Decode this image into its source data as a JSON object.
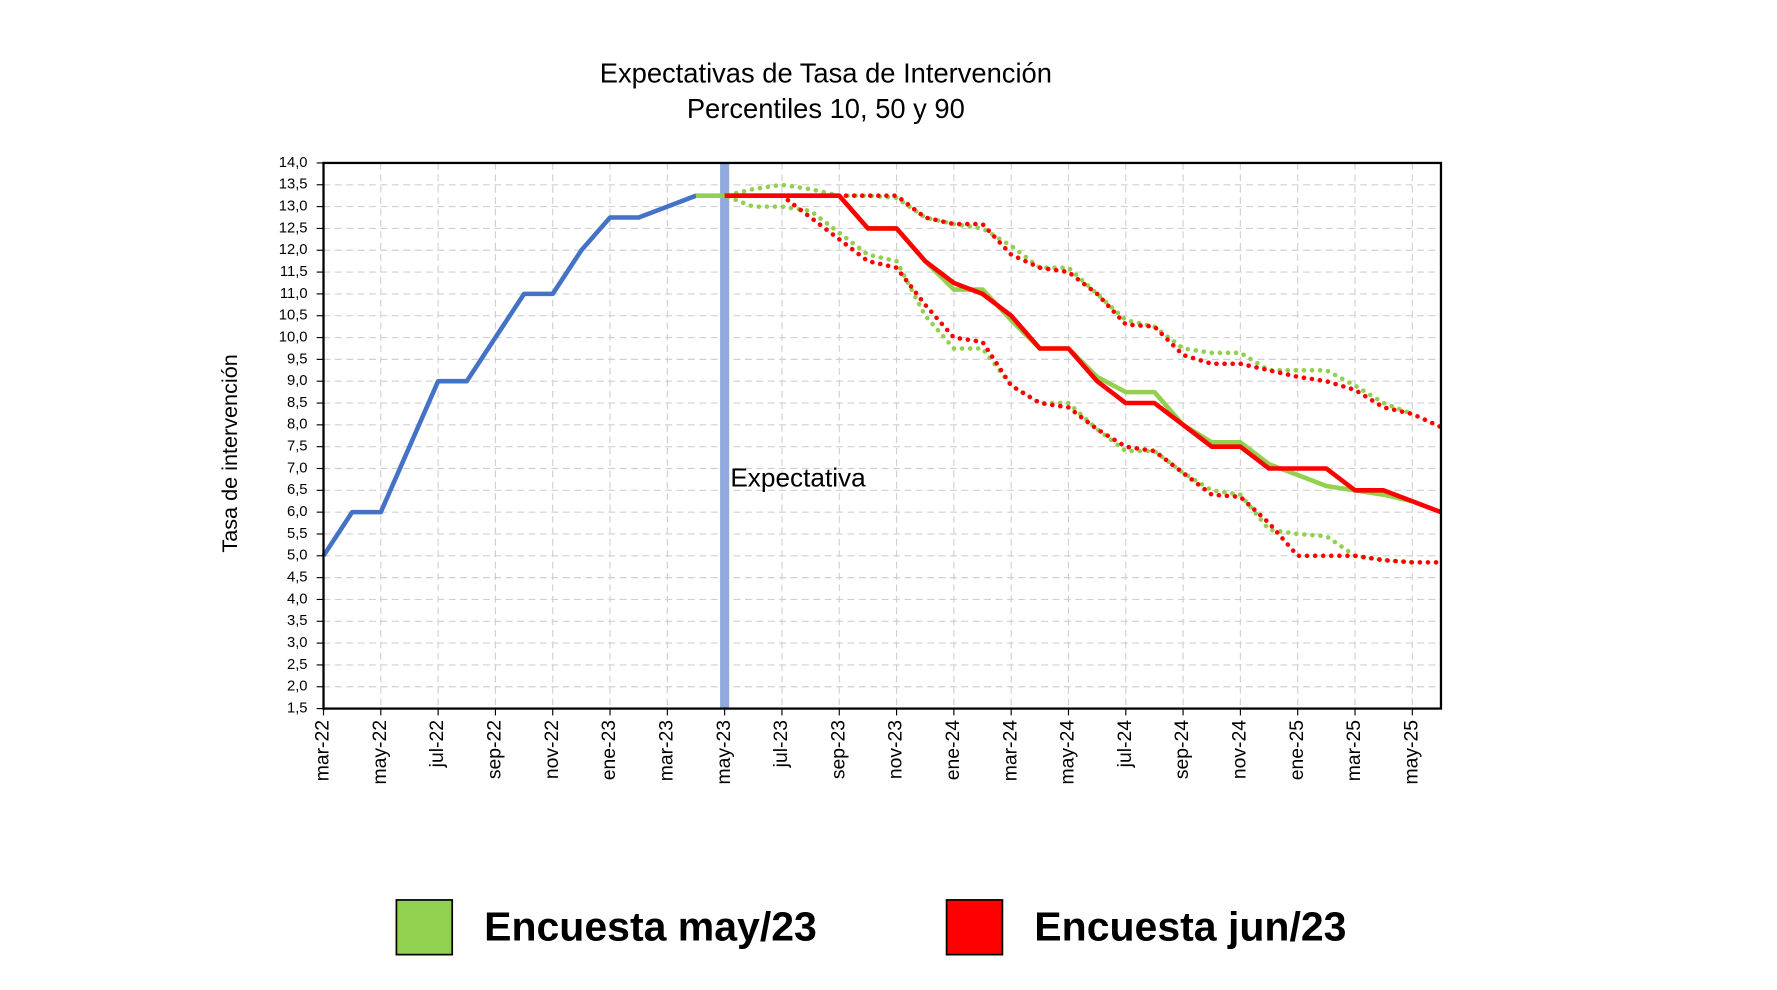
{
  "chart_data": {
    "type": "line",
    "title": "Expectativas de Tasa de Intervención",
    "subtitle": "Percentiles 10, 50 y 90",
    "y_label": "Tasa de intervención",
    "categories": [
      "mar-22",
      null,
      "may-22",
      null,
      "jul-22",
      null,
      "sep-22",
      null,
      "nov-22",
      null,
      "ene-23",
      null,
      "mar-23",
      null,
      "may-23",
      null,
      "jul-23",
      null,
      "sep-23",
      null,
      "nov-23",
      null,
      "ene-24",
      null,
      "mar-24",
      null,
      "may-24",
      null,
      "jul-24",
      null,
      "sep-24",
      null,
      "nov-24",
      null,
      "ene-25",
      null,
      "mar-25",
      null,
      "may-25",
      null
    ],
    "ylim": [
      1.5,
      14.0
    ],
    "yticks": [
      {
        "value": 1.5,
        "label": "1,5"
      },
      {
        "value": 2.0,
        "label": "2,0"
      },
      {
        "value": 2.5,
        "label": "2,5"
      },
      {
        "value": 3.0,
        "label": "3,0"
      },
      {
        "value": 3.5,
        "label": "3,5"
      },
      {
        "value": 4.0,
        "label": "4,0"
      },
      {
        "value": 4.5,
        "label": "4,5"
      },
      {
        "value": 5.0,
        "label": "5,0"
      },
      {
        "value": 5.5,
        "label": "5,5"
      },
      {
        "value": 6.0,
        "label": "6,0"
      },
      {
        "value": 6.5,
        "label": "6,5"
      },
      {
        "value": 7.0,
        "label": "7,0"
      },
      {
        "value": 7.5,
        "label": "7,5"
      },
      {
        "value": 8.0,
        "label": "8,0"
      },
      {
        "value": 8.5,
        "label": "8,5"
      },
      {
        "value": 9.0,
        "label": "9,0"
      },
      {
        "value": 9.5,
        "label": "9,5"
      },
      {
        "value": 10.0,
        "label": "10,0"
      },
      {
        "value": 10.5,
        "label": "10,5"
      },
      {
        "value": 11.0,
        "label": "11,0"
      },
      {
        "value": 11.5,
        "label": "11,5"
      },
      {
        "value": 12.0,
        "label": "12,0"
      },
      {
        "value": 12.5,
        "label": "12,5"
      },
      {
        "value": 13.0,
        "label": "13,0"
      },
      {
        "value": 13.5,
        "label": "13,5"
      },
      {
        "value": 14.0,
        "label": "14,0"
      }
    ],
    "grid": true,
    "vline": {
      "label": "Expectativa",
      "category": "may-23",
      "color": "#8faadc"
    },
    "series": [
      {
        "color": "#4472c4",
        "style": "solid",
        "values": [
          5.0,
          6.0,
          6.0,
          7.5,
          9.0,
          9.0,
          10.0,
          11.0,
          11.0,
          12.0,
          12.75,
          12.75,
          13.0,
          13.25,
          null,
          null,
          null,
          null,
          null,
          null,
          null,
          null,
          null,
          null,
          null,
          null,
          null,
          null,
          null,
          null,
          null,
          null,
          null,
          null,
          null,
          null,
          null,
          null,
          null,
          null
        ]
      },
      {
        "color": "#92d050",
        "style": "dotted",
        "values": [
          null,
          null,
          null,
          null,
          null,
          null,
          null,
          null,
          null,
          null,
          null,
          null,
          null,
          13.25,
          13.25,
          13.4,
          13.5,
          13.4,
          13.25,
          13.25,
          13.2,
          12.75,
          12.6,
          12.5,
          12.1,
          11.6,
          11.6,
          11.0,
          10.4,
          10.25,
          9.75,
          9.65,
          9.65,
          9.25,
          9.25,
          9.25,
          8.9,
          8.5,
          8.25,
          null
        ]
      },
      {
        "color": "#92d050",
        "style": "dotted",
        "values": [
          null,
          null,
          null,
          null,
          null,
          null,
          null,
          null,
          null,
          null,
          null,
          null,
          null,
          13.25,
          13.25,
          13.0,
          13.0,
          12.9,
          12.4,
          11.9,
          11.75,
          10.5,
          9.75,
          9.75,
          8.9,
          8.5,
          8.5,
          7.9,
          7.4,
          7.4,
          6.9,
          6.5,
          6.4,
          5.6,
          5.5,
          5.45,
          5.0,
          4.9,
          4.85,
          null
        ]
      },
      {
        "color": "#ff0000",
        "style": "dotted",
        "values": [
          null,
          null,
          null,
          null,
          null,
          null,
          null,
          null,
          null,
          null,
          null,
          null,
          null,
          null,
          13.25,
          13.25,
          13.25,
          13.25,
          13.25,
          13.25,
          13.25,
          12.75,
          12.6,
          12.6,
          11.9,
          11.6,
          11.5,
          11.0,
          10.3,
          10.25,
          9.6,
          9.4,
          9.4,
          9.25,
          9.1,
          9.0,
          8.8,
          8.4,
          8.25,
          7.95
        ]
      },
      {
        "color": "#ff0000",
        "style": "dotted",
        "values": [
          null,
          null,
          null,
          null,
          null,
          null,
          null,
          null,
          null,
          null,
          null,
          null,
          null,
          null,
          13.25,
          13.25,
          13.25,
          12.75,
          12.25,
          11.75,
          11.6,
          10.75,
          10.0,
          9.9,
          8.9,
          8.5,
          8.4,
          7.9,
          7.5,
          7.4,
          6.9,
          6.4,
          6.35,
          5.75,
          5.0,
          5.0,
          5.0,
          4.9,
          4.85,
          4.85
        ]
      },
      {
        "name": "Encuesta may/23",
        "color": "#92d050",
        "style": "solid",
        "values": [
          null,
          null,
          null,
          null,
          null,
          null,
          null,
          null,
          null,
          null,
          null,
          null,
          null,
          13.25,
          13.25,
          13.25,
          13.25,
          13.25,
          13.25,
          12.5,
          12.5,
          11.75,
          11.1,
          11.1,
          10.4,
          9.75,
          9.75,
          9.1,
          8.75,
          8.75,
          8.0,
          7.6,
          7.6,
          7.1,
          6.85,
          6.6,
          6.5,
          6.4,
          6.25,
          null
        ]
      },
      {
        "name": "Encuesta jun/23",
        "color": "#ff0000",
        "style": "solid",
        "values": [
          null,
          null,
          null,
          null,
          null,
          null,
          null,
          null,
          null,
          null,
          null,
          null,
          null,
          null,
          13.25,
          13.25,
          13.25,
          13.25,
          13.25,
          12.5,
          12.5,
          11.75,
          11.25,
          11.0,
          10.5,
          9.75,
          9.75,
          9.0,
          8.5,
          8.5,
          8.0,
          7.5,
          7.5,
          7.0,
          7.0,
          7.0,
          6.5,
          6.5,
          6.25,
          6.0
        ]
      }
    ]
  }
}
